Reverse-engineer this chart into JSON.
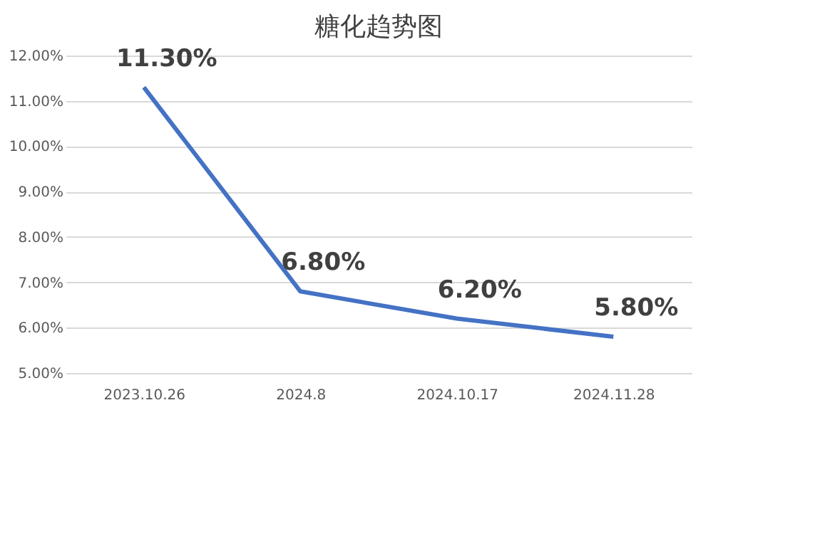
{
  "chart_data": {
    "type": "line",
    "title": "糖化趋势图",
    "categories": [
      "2023.10.26",
      "2024.8",
      "2024.10.17",
      "2024.11.28"
    ],
    "series": [
      {
        "color": "#4472c4",
        "values": [
          11.3,
          6.8,
          6.2,
          5.8
        ],
        "value_labels": [
          "11.30%",
          "6.80%",
          "6.20%",
          "5.80%"
        ]
      }
    ],
    "ylim": [
      5,
      12
    ],
    "yticks": [
      {
        "value": 5,
        "label": "5.00%"
      },
      {
        "value": 6,
        "label": "6.00%"
      },
      {
        "value": 7,
        "label": "7.00%"
      },
      {
        "value": 8,
        "label": "8.00%"
      },
      {
        "value": 9,
        "label": "9.00%"
      },
      {
        "value": 10,
        "label": "10.00%"
      },
      {
        "value": 11,
        "label": "11.00%"
      },
      {
        "value": 12,
        "label": "12.00%"
      }
    ],
    "grid": "y",
    "legend": false,
    "marker": "none",
    "line_style": "solid"
  }
}
